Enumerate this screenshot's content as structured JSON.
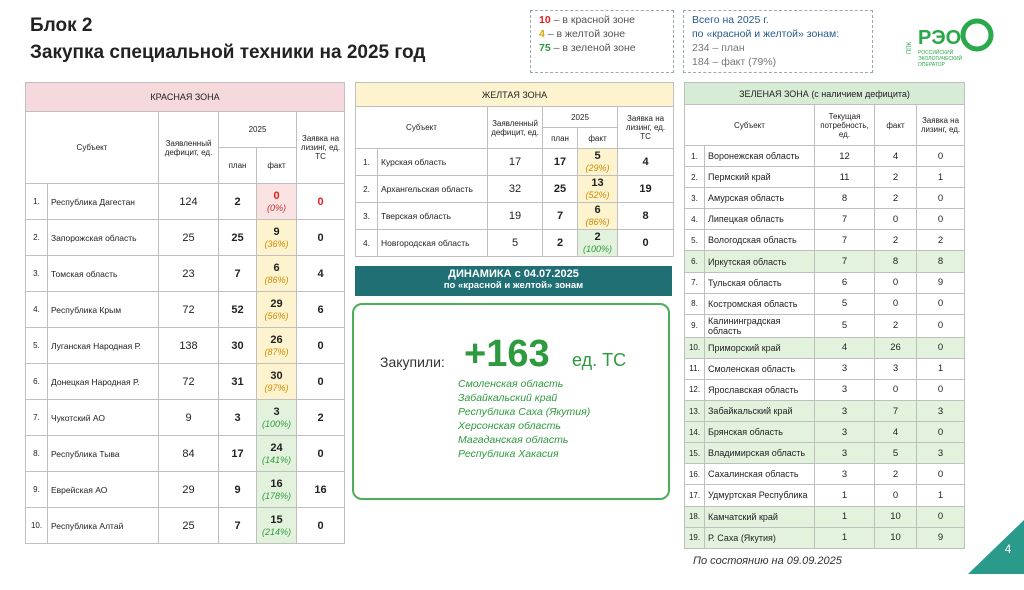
{
  "header": {
    "title": "Блок 2",
    "subtitle": "Закупка специальной техники на 2025 год"
  },
  "zones_legend": [
    {
      "number": "10",
      "text": "– в красной зоне",
      "color": "#e02020"
    },
    {
      "number": "4",
      "text": "– в желтой зоне",
      "color": "#d9a400"
    },
    {
      "number": "75",
      "text": "– в зеленой зоне",
      "color": "#2e9a3e"
    }
  ],
  "summary": {
    "lines": [
      "Всего на 2025 г.",
      "по «красной и желтой» зонам:"
    ],
    "plan": "234 – план",
    "fact": "184 – факт (79%)"
  },
  "logo": {
    "prefix": "ППК",
    "name": "РЭО",
    "caption": "РОССИЙСКИЙ ЭКОЛОГИЧЕСКИЙ ОПЕРАТОР"
  },
  "red_table": {
    "title": "КРАСНАЯ ЗОНА",
    "headers": {
      "subject": "Субъект",
      "deficit": "Заявленный дефицит, ед.",
      "year": "2025",
      "plan": "план",
      "fact": "факт",
      "lease": "Заявка на лизинг, ед. ТС"
    },
    "rows": [
      {
        "num": "1.",
        "subject": "Республика Дагестан",
        "deficit": 124,
        "plan": 2,
        "fact": 0,
        "fact_pct": "(0%)",
        "lease": 0,
        "fact_fill": "red"
      },
      {
        "num": "2.",
        "subject": "Запорожская область",
        "deficit": 25,
        "plan": 25,
        "fact": 9,
        "fact_pct": "(36%)",
        "lease": 0,
        "fact_fill": "yellow"
      },
      {
        "num": "3.",
        "subject": "Томская область",
        "deficit": 23,
        "plan": 7,
        "fact": 6,
        "fact_pct": "(86%)",
        "lease": 4,
        "fact_fill": "yellow"
      },
      {
        "num": "4.",
        "subject": "Республика Крым",
        "deficit": 72,
        "plan": 52,
        "fact": 29,
        "fact_pct": "(56%)",
        "lease": 6,
        "fact_fill": "yellow"
      },
      {
        "num": "5.",
        "subject": "Луганская Народная Р.",
        "deficit": 138,
        "plan": 30,
        "fact": 26,
        "fact_pct": "(87%)",
        "lease": 0,
        "fact_fill": "yellow"
      },
      {
        "num": "6.",
        "subject": "Донецкая Народная Р.",
        "deficit": 72,
        "plan": 31,
        "fact": 30,
        "fact_pct": "(97%)",
        "lease": 0,
        "fact_fill": "yellow"
      },
      {
        "num": "7.",
        "subject": "Чукотский АО",
        "deficit": 9,
        "plan": 3,
        "fact": 3,
        "fact_pct": "(100%)",
        "lease": 2,
        "fact_fill": "green"
      },
      {
        "num": "8.",
        "subject": "Республика Тыва",
        "deficit": 84,
        "plan": 17,
        "fact": 24,
        "fact_pct": "(141%)",
        "lease": 0,
        "fact_fill": "green"
      },
      {
        "num": "9.",
        "subject": "Еврейская АО",
        "deficit": 29,
        "plan": 9,
        "fact": 16,
        "fact_pct": "(178%)",
        "lease": 16,
        "fact_fill": "green"
      },
      {
        "num": "10.",
        "subject": "Республика Алтай",
        "deficit": 25,
        "plan": 7,
        "fact": 15,
        "fact_pct": "(214%)",
        "lease": 0,
        "fact_fill": "green"
      }
    ]
  },
  "yellow_table": {
    "title": "ЖЕЛТАЯ ЗОНА",
    "headers": {
      "subject": "Субъект",
      "deficit": "Заявленный дефицит, ед.",
      "year": "2025",
      "plan": "план",
      "fact": "факт",
      "lease": "Заявка на лизинг, ед. ТС"
    },
    "rows": [
      {
        "num": "1.",
        "subject": "Курская область",
        "deficit": 17,
        "plan": 17,
        "fact": 5,
        "fact_pct": "(29%)",
        "lease": 4,
        "fact_fill": "yellow"
      },
      {
        "num": "2.",
        "subject": "Архангельская область",
        "deficit": 32,
        "plan": 25,
        "fact": 13,
        "fact_pct": "(52%)",
        "lease": 19,
        "fact_fill": "yellow"
      },
      {
        "num": "3.",
        "subject": "Тверская область",
        "deficit": 19,
        "plan": 7,
        "fact": 6,
        "fact_pct": "(86%)",
        "lease": 8,
        "fact_fill": "yellow"
      },
      {
        "num": "4.",
        "subject": "Новгородская область",
        "deficit": 5,
        "plan": 2,
        "fact": 2,
        "fact_pct": "(100%)",
        "lease": 0,
        "fact_fill": "green"
      }
    ]
  },
  "dynamics": {
    "title": "ДИНАМИКА с 04.07.2025",
    "subtitle": "по «красной и желтой» зонам",
    "label": "Закупили:",
    "amount": "+163",
    "unit": "ед. ТС",
    "regions": [
      "Смоленская область",
      "Забайкальский край",
      "Республика Саха (Якутия)",
      "Херсонская область",
      "Магаданская область",
      "Республика Хакасия"
    ]
  },
  "green_table": {
    "title": "ЗЕЛЕНАЯ ЗОНА (с наличием дефицита)",
    "headers": {
      "subject": "Субъект",
      "need": "Текущая потребность, ед.",
      "fact": "факт",
      "lease": "Заявка на лизинг, ед."
    },
    "rows": [
      {
        "num": "1.",
        "subject": "Воронежская область",
        "need": 12,
        "fact": 4,
        "lease": 0,
        "highlight": false
      },
      {
        "num": "2.",
        "subject": "Пермский край",
        "need": 11,
        "fact": 2,
        "lease": 1,
        "highlight": false
      },
      {
        "num": "3.",
        "subject": "Амурская область",
        "need": 8,
        "fact": 2,
        "lease": 0,
        "highlight": false
      },
      {
        "num": "4.",
        "subject": "Липецкая область",
        "need": 7,
        "fact": 0,
        "lease": 0,
        "highlight": false
      },
      {
        "num": "5.",
        "subject": "Вологодская область",
        "need": 7,
        "fact": 2,
        "lease": 2,
        "highlight": false
      },
      {
        "num": "6.",
        "subject": "Иркутская область",
        "need": 7,
        "fact": 8,
        "lease": 8,
        "highlight": true
      },
      {
        "num": "7.",
        "subject": "Тульская область",
        "need": 6,
        "fact": 0,
        "lease": 9,
        "highlight": false
      },
      {
        "num": "8.",
        "subject": "Костромская область",
        "need": 5,
        "fact": 0,
        "lease": 0,
        "highlight": false
      },
      {
        "num": "9.",
        "subject": "Калининградская область",
        "need": 5,
        "fact": 2,
        "lease": 0,
        "highlight": false
      },
      {
        "num": "10.",
        "subject": "Приморский край",
        "need": 4,
        "fact": 26,
        "lease": 0,
        "highlight": true
      },
      {
        "num": "11.",
        "subject": "Смоленская область",
        "need": 3,
        "fact": 3,
        "lease": 1,
        "highlight": false
      },
      {
        "num": "12.",
        "subject": "Ярославская область",
        "need": 3,
        "fact": 0,
        "lease": 0,
        "highlight": false
      },
      {
        "num": "13.",
        "subject": "Забайкальский край",
        "need": 3,
        "fact": 7,
        "lease": 3,
        "highlight": true
      },
      {
        "num": "14.",
        "subject": "Брянская область",
        "need": 3,
        "fact": 4,
        "lease": 0,
        "highlight": true
      },
      {
        "num": "15.",
        "subject": "Владимирская область",
        "need": 3,
        "fact": 5,
        "lease": 3,
        "highlight": true
      },
      {
        "num": "16.",
        "subject": "Сахалинская область",
        "need": 3,
        "fact": 2,
        "lease": 0,
        "highlight": false
      },
      {
        "num": "17.",
        "subject": "Удмуртская Республика",
        "need": 1,
        "fact": 0,
        "lease": 1,
        "highlight": false
      },
      {
        "num": "18.",
        "subject": "Камчатский край",
        "need": 1,
        "fact": 10,
        "lease": 0,
        "highlight": true
      },
      {
        "num": "19.",
        "subject": "Р. Саха (Якутия)",
        "need": 1,
        "fact": 10,
        "lease": 9,
        "highlight": true
      }
    ]
  },
  "footer": {
    "status": "По состоянию на  09.09.2025",
    "page": "4"
  }
}
